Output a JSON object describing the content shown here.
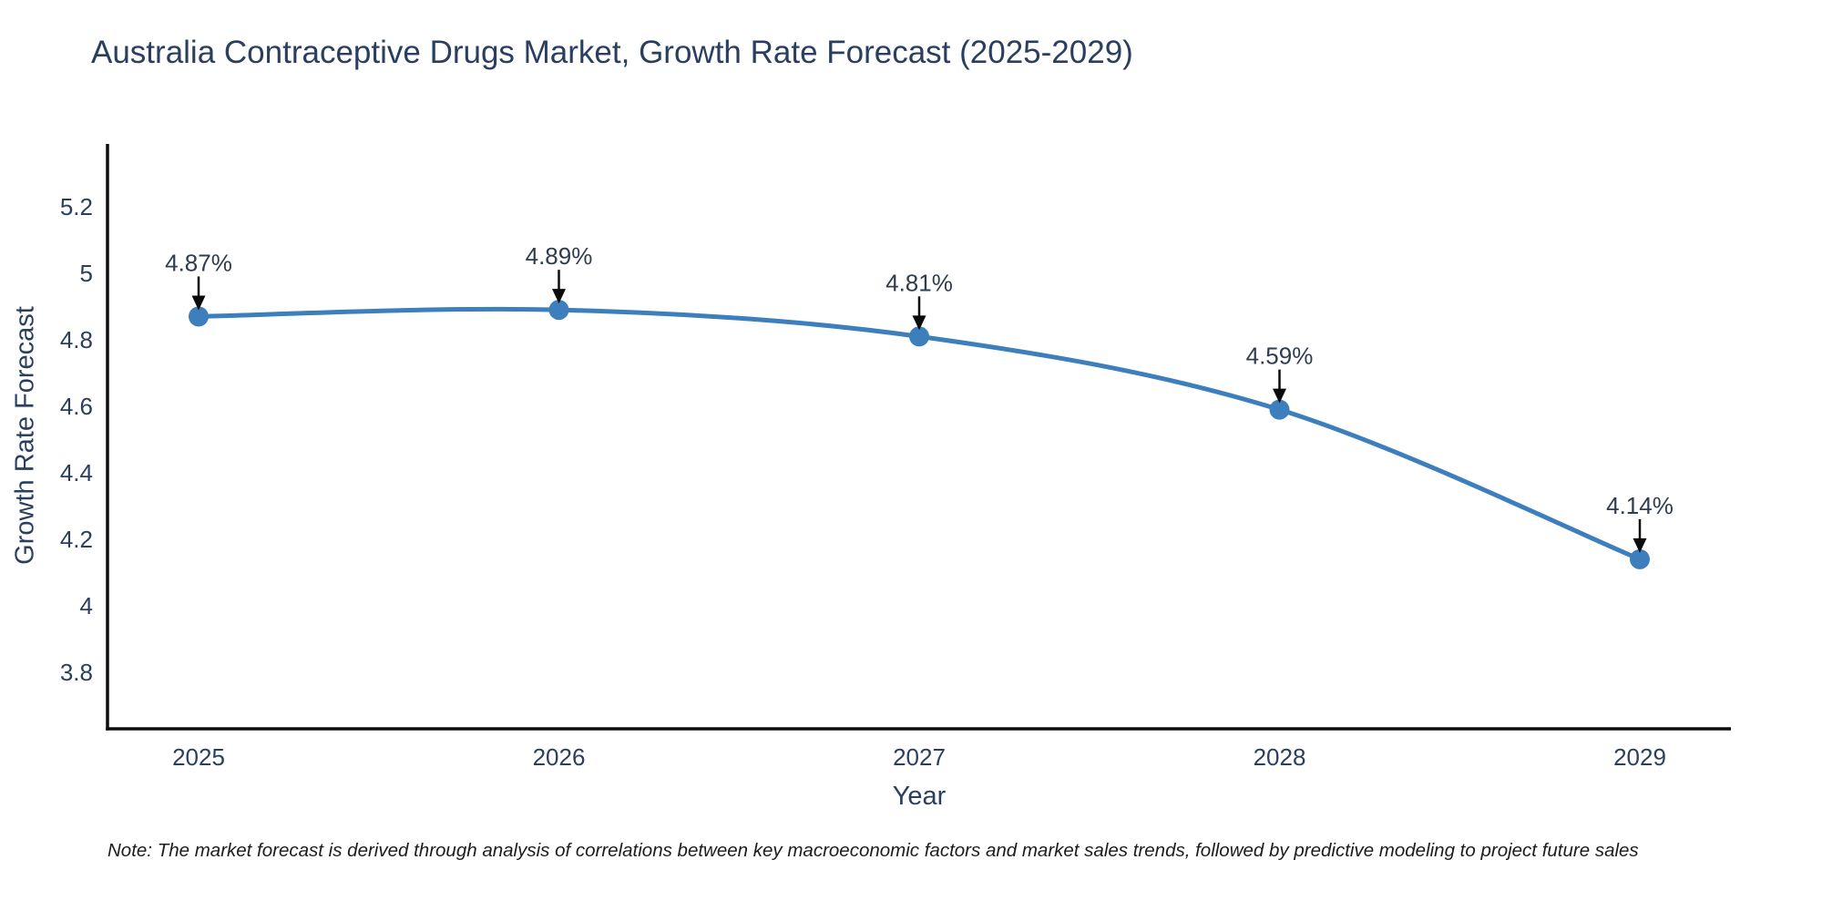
{
  "chart": {
    "note": "Note: The market forecast is derived through analysis of correlations between key macroeconomic factors and market sales trends, followed by predictive modeling to project future sales"
  },
  "chart_data": {
    "type": "line",
    "title": "Australia Contraceptive Drugs Market, Growth Rate Forecast (2025-2029)",
    "xlabel": "Year",
    "ylabel": "Growth Rate Forecast",
    "x": [
      2025,
      2026,
      2027,
      2028,
      2029
    ],
    "categories": [
      "2025",
      "2026",
      "2027",
      "2028",
      "2029"
    ],
    "values": [
      4.87,
      4.89,
      4.81,
      4.59,
      4.14
    ],
    "point_labels": [
      "4.87%",
      "4.89%",
      "4.81%",
      "4.59%",
      "4.14%"
    ],
    "ytick_labels": [
      "3.8",
      "4",
      "4.2",
      "4.4",
      "4.6",
      "4.8",
      "5",
      "5.2"
    ],
    "ytick_values": [
      3.8,
      4.0,
      4.2,
      4.4,
      4.6,
      4.8,
      5.0,
      5.2
    ],
    "ylim": [
      3.64,
      5.39
    ],
    "grid": false,
    "legend_position": "none",
    "line_color": "#3d7ebd",
    "marker_color": "#3d7ebd",
    "axis_color": "#0d0d0d",
    "text_color": "#2a3f5f",
    "annotation_text_color": "#2e3c4e",
    "annotation_arrow_color": "#0b0b0b"
  }
}
